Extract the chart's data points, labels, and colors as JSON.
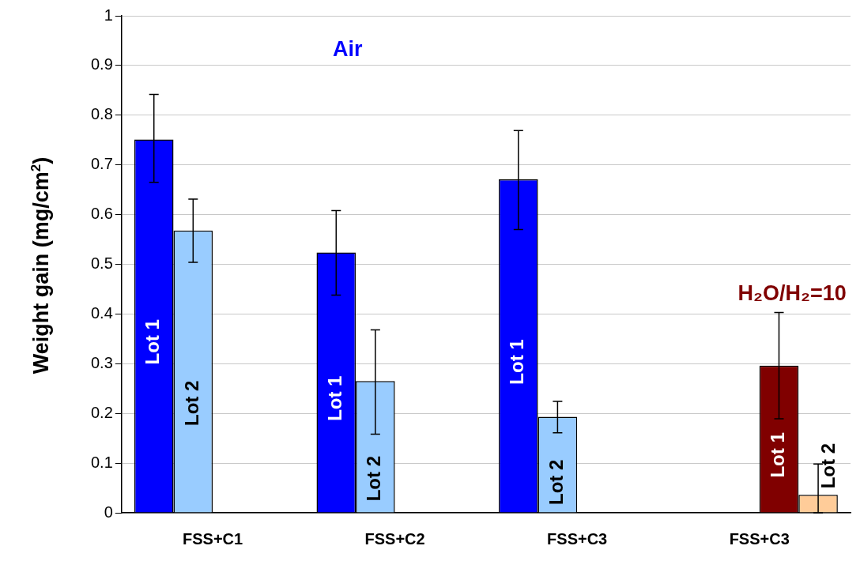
{
  "chart_data": {
    "type": "bar",
    "ylabel": "Weight gain (mg/cm$^{2}$)",
    "categories": [
      "FSS+C1",
      "FSS+C2",
      "FSS+C3",
      "FSS+C3"
    ],
    "series": [
      {
        "name": "Lot 1",
        "color": "#0000ff",
        "values": [
          0.751,
          0.524,
          0.671,
          null
        ],
        "errors": [
          [
            0.665,
            0.842
          ],
          [
            0.438,
            0.608
          ],
          [
            0.57,
            0.769
          ],
          null
        ]
      },
      {
        "name": "Lot 2",
        "color": "#99ccff",
        "values": [
          0.568,
          0.265,
          0.193,
          null
        ],
        "errors": [
          [
            0.504,
            0.631
          ],
          [
            0.158,
            0.368
          ],
          [
            0.161,
            0.224
          ],
          null
        ]
      },
      {
        "name": "Lot 1",
        "color": "#800000",
        "values": [
          null,
          null,
          null,
          0.296
        ],
        "errors": [
          null,
          null,
          null,
          [
            0.189,
            0.403
          ]
        ]
      },
      {
        "name": "Lot 2",
        "color": "#ffcc99",
        "values": [
          null,
          null,
          null,
          0.036
        ],
        "errors": [
          null,
          null,
          null,
          [
            0,
            0.098
          ]
        ]
      }
    ],
    "annotations": [
      "Air",
      "H₂O/H₂=10"
    ],
    "ylim": [
      0,
      1
    ],
    "yticks": [
      0,
      0.1,
      0.2,
      0.3,
      0.4,
      0.5,
      0.6,
      0.7,
      0.8,
      0.9,
      1
    ],
    "grid": "y",
    "legend": false
  }
}
